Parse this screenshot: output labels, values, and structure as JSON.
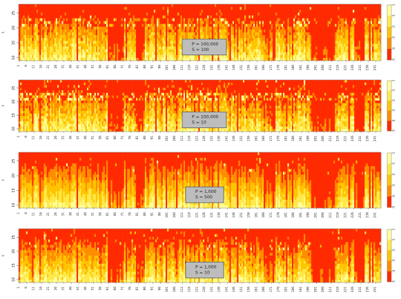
{
  "chart_data": [
    {
      "type": "heatmap",
      "legend_box": [
        "P = 100,000",
        "S = 100"
      ],
      "y_axis_label": "t",
      "y_ticks": [
        10,
        15,
        20,
        25
      ],
      "colorbar_ticks": [
        "1",
        "-1",
        "-2",
        "-3",
        "-4",
        "-5"
      ],
      "x_range": [
        1,
        244
      ],
      "y_range": [
        9,
        28
      ],
      "params": {
        "seed": 11,
        "top_red": 0.85,
        "rough": 0.6,
        "yellow_dots": 0.14
      }
    },
    {
      "type": "heatmap",
      "legend_box": [
        "P = 100,000",
        "S = 10"
      ],
      "y_axis_label": "t",
      "y_ticks": [
        10,
        15,
        20,
        25
      ],
      "colorbar_ticks": [
        "1",
        "-1",
        "-2",
        "-3",
        "-4",
        "-5"
      ],
      "x_range": [
        1,
        244
      ],
      "y_range": [
        9,
        28
      ],
      "params": {
        "seed": 23,
        "top_red": 0.85,
        "rough": 0.75,
        "yellow_dots": 0.22
      }
    },
    {
      "type": "heatmap",
      "legend_box": [
        "P = 1,000",
        "S = 500"
      ],
      "y_axis_label": "t",
      "y_ticks": [
        10,
        15,
        20,
        25
      ],
      "colorbar_ticks": [
        "1",
        "-1",
        "-2",
        "-3",
        "-4",
        "-5"
      ],
      "x_range": [
        1,
        244
      ],
      "y_range": [
        9,
        28
      ],
      "params": {
        "seed": 37,
        "top_red": 0.2,
        "rough": 0.3,
        "yellow_dots": 0.02
      }
    },
    {
      "type": "heatmap",
      "legend_box": [
        "P = 1,000",
        "S = 10"
      ],
      "y_axis_label": "t",
      "y_ticks": [
        10,
        15,
        20,
        25
      ],
      "colorbar_ticks": [
        "1",
        "-1",
        "-2",
        "-3",
        "-4",
        "-5"
      ],
      "x_range": [
        1,
        244
      ],
      "y_range": [
        9,
        28
      ],
      "params": {
        "seed": 51,
        "top_red": 0.3,
        "rough": 0.55,
        "yellow_dots": 0.05
      }
    }
  ],
  "x_tick_labels": [
    "1",
    "6",
    "11",
    "16",
    "21",
    "26",
    "31",
    "36",
    "41",
    "46",
    "51",
    "56",
    "61",
    "66",
    "71",
    "76",
    "81",
    "86",
    "91",
    "96",
    "101",
    "106",
    "111",
    "116",
    "121",
    "126",
    "131",
    "136",
    "141",
    "146",
    "151",
    "156",
    "161",
    "166",
    "171",
    "176",
    "181",
    "186",
    "191",
    "196",
    "201",
    "206",
    "211",
    "216",
    "221",
    "226",
    "231",
    "236",
    "241"
  ],
  "colors": {
    "red": "#ff2a00",
    "orange": "#ff8c00",
    "amber": "#ffc400",
    "yellow": "#ffe94a",
    "pale_yellow": "#ffff9e",
    "legend_box_fill": "#bdbdbd"
  }
}
